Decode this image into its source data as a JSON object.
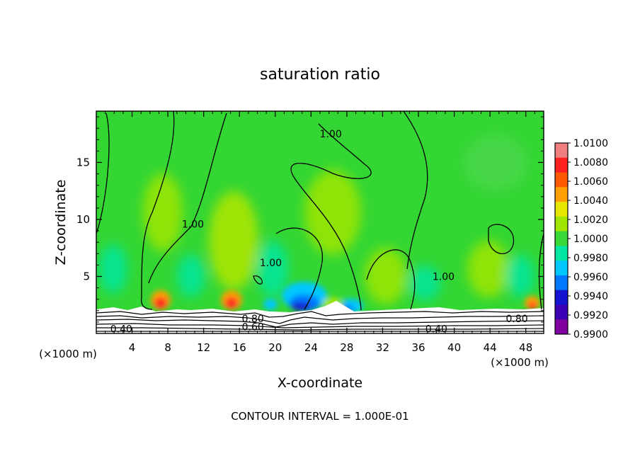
{
  "chart_data": {
    "type": "heatmap",
    "title": "saturation ratio",
    "xlabel": "X-coordinate",
    "ylabel": "Z-coordinate",
    "x_unit": "(×1000 m)",
    "x_ticks": [
      "4",
      "8",
      "12",
      "16",
      "20",
      "24",
      "28",
      "32",
      "36",
      "40",
      "44",
      "48"
    ],
    "y_ticks": [
      "5",
      "10",
      "15"
    ],
    "xlim": [
      0,
      50
    ],
    "ylim": [
      0,
      19.5
    ],
    "footer": "CONTOUR INTERVAL = 1.000E-01",
    "colorbar": {
      "labels": [
        "1.0100",
        "1.0080",
        "1.0060",
        "1.0040",
        "1.0020",
        "1.0000",
        "0.9980",
        "0.9960",
        "0.9940",
        "0.9920",
        "0.9900"
      ],
      "colors": [
        "#f08080",
        "#ff2020",
        "#ff5a00",
        "#ffa000",
        "#e6e600",
        "#a0e600",
        "#38d838",
        "#00e6a0",
        "#00c8ff",
        "#0078ff",
        "#1414d0",
        "#3c00b4",
        "#8000a0"
      ]
    },
    "contour_labels": [
      {
        "text": "1.00",
        "x": 26.2,
        "y": 17.5
      },
      {
        "text": "1.00",
        "x": 10.8,
        "y": 9.6
      },
      {
        "text": "1.00",
        "x": 19.5,
        "y": 6.2
      },
      {
        "text": "1.00",
        "x": 38.8,
        "y": 5.0
      },
      {
        "text": "0.80",
        "x": 17.5,
        "y": 1.3
      },
      {
        "text": "0.60",
        "x": 17.5,
        "y": 0.6
      },
      {
        "text": "0.80",
        "x": 47.0,
        "y": 1.3
      },
      {
        "text": "0.40",
        "x": 2.8,
        "y": 0.4
      },
      {
        "text": "0.40",
        "x": 38.0,
        "y": 0.4
      }
    ]
  }
}
